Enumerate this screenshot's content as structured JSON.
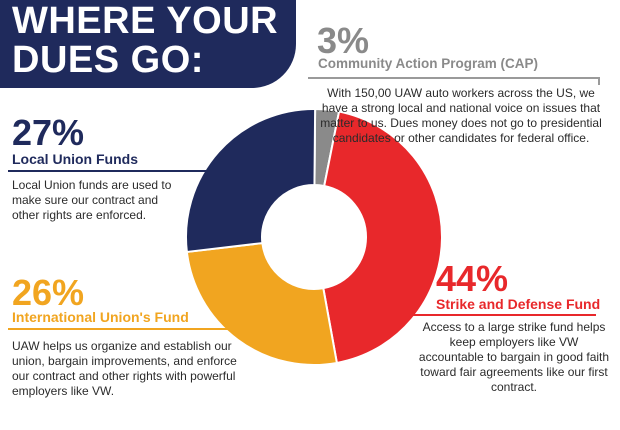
{
  "title": "WHERE YOUR\nDUES GO:",
  "colors": {
    "navy": "#1f2a5c",
    "gray": "#8a8a8a",
    "red": "#e8282b",
    "orange": "#f1a520"
  },
  "callouts": {
    "cap": {
      "percent": "3%",
      "name": "Community Action Program (CAP)",
      "description": "With 150,00 UAW auto workers across the US, we have a strong local and national voice on issues that matter to us. Dues money does not go to presidential candidates or other candidates for federal office."
    },
    "local": {
      "percent": "27%",
      "name": "Local Union Funds",
      "description": "Local Union funds are used to make sure our contract and other rights are enforced."
    },
    "international": {
      "percent": "26%",
      "name": "International Union's Fund",
      "description": "UAW helps us organize and establish our union, bargain improvements, and enforce our contract and other rights with powerful employers like VW."
    },
    "strike": {
      "percent": "44%",
      "name": "Strike and Defense Fund",
      "description": "Access to a large strike fund helps keep employers like VW accountable to bargain in good faith toward fair agreements like our first contract."
    }
  },
  "chart_data": {
    "type": "pie",
    "donut": true,
    "categories": [
      "Community Action Program (CAP)",
      "Strike and Defense Fund",
      "International Union's Fund",
      "Local Union Funds"
    ],
    "values": [
      3,
      44,
      26,
      27
    ],
    "colors": [
      "#8a8a8a",
      "#e8282b",
      "#f1a520",
      "#1f2a5c"
    ],
    "legend": "none"
  }
}
